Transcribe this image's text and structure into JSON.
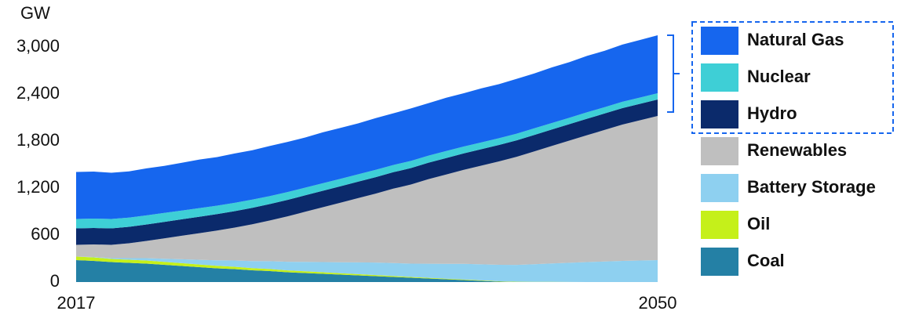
{
  "chart_data": {
    "type": "stacked_area",
    "y_unit_label": "GW",
    "x": [
      2017,
      2018,
      2019,
      2020,
      2021,
      2022,
      2023,
      2024,
      2025,
      2026,
      2027,
      2028,
      2029,
      2030,
      2031,
      2032,
      2033,
      2034,
      2035,
      2036,
      2037,
      2038,
      2039,
      2040,
      2041,
      2042,
      2043,
      2044,
      2045,
      2046,
      2047,
      2048,
      2049,
      2050
    ],
    "xlim": [
      2017,
      2050
    ],
    "xticks": [
      2017,
      2050
    ],
    "ylim": [
      0,
      3000
    ],
    "yticks": [
      0,
      {
        "value": 600,
        "label": "600"
      },
      {
        "value": 1200,
        "label": "1,200"
      },
      {
        "value": 1800,
        "label": "1,800"
      },
      {
        "value": 2400,
        "label": "2,400"
      },
      {
        "value": 3000,
        "label": "3,000"
      }
    ],
    "series": [
      {
        "name": "Coal",
        "color": "#2480a5",
        "values": [
          280,
          270,
          255,
          245,
          235,
          220,
          205,
          190,
          175,
          165,
          150,
          140,
          125,
          115,
          105,
          95,
          85,
          75,
          65,
          55,
          45,
          35,
          25,
          15,
          5,
          0,
          0,
          0,
          0,
          0,
          0,
          0,
          0,
          0
        ]
      },
      {
        "name": "Oil",
        "color": "#c5f01a",
        "values": [
          45,
          45,
          40,
          40,
          40,
          38,
          36,
          34,
          32,
          30,
          28,
          26,
          24,
          22,
          20,
          18,
          16,
          14,
          12,
          10,
          9,
          8,
          7,
          6,
          5,
          4,
          3,
          2,
          1,
          0,
          0,
          0,
          0,
          0
        ]
      },
      {
        "name": "Battery Storage",
        "color": "#8ed0f0",
        "values": [
          0,
          5,
          10,
          20,
          30,
          40,
          50,
          60,
          70,
          80,
          90,
          100,
          110,
          120,
          130,
          140,
          150,
          160,
          165,
          170,
          180,
          190,
          200,
          205,
          210,
          215,
          225,
          235,
          245,
          255,
          262,
          270,
          275,
          280
        ]
      },
      {
        "name": "Renewables",
        "color": "#bfbfbf",
        "values": [
          150,
          160,
          170,
          190,
          220,
          260,
          300,
          340,
          380,
          420,
          470,
          520,
          580,
          640,
          700,
          760,
          820,
          880,
          950,
          1010,
          1080,
          1140,
          1200,
          1260,
          1320,
          1380,
          1440,
          1500,
          1560,
          1620,
          1680,
          1740,
          1790,
          1840
        ]
      },
      {
        "name": "Hydro",
        "color": "#0b2a6b",
        "values": [
          210,
          210,
          210,
          210,
          210,
          210,
          210,
          210,
          210,
          210,
          210,
          210,
          210,
          210,
          210,
          210,
          210,
          210,
          210,
          210,
          210,
          210,
          210,
          210,
          210,
          210,
          210,
          210,
          210,
          210,
          210,
          210,
          210,
          210
        ]
      },
      {
        "name": "Nuclear",
        "color": "#3ecfd6",
        "values": [
          120,
          120,
          120,
          118,
          116,
          114,
          112,
          110,
          108,
          106,
          104,
          102,
          100,
          98,
          96,
          95,
          94,
          93,
          92,
          91,
          90,
          89,
          88,
          87,
          86,
          85,
          84,
          83,
          82,
          82,
          81,
          81,
          80,
          80
        ]
      },
      {
        "name": "Natural Gas",
        "color": "#1666ee",
        "values": [
          600,
          600,
          590,
          590,
          600,
          600,
          610,
          620,
          620,
          630,
          630,
          640,
          640,
          640,
          650,
          650,
          650,
          660,
          660,
          670,
          670,
          680,
          680,
          690,
          690,
          700,
          700,
          710,
          710,
          720,
          720,
          730,
          735,
          740
        ]
      }
    ]
  }
}
